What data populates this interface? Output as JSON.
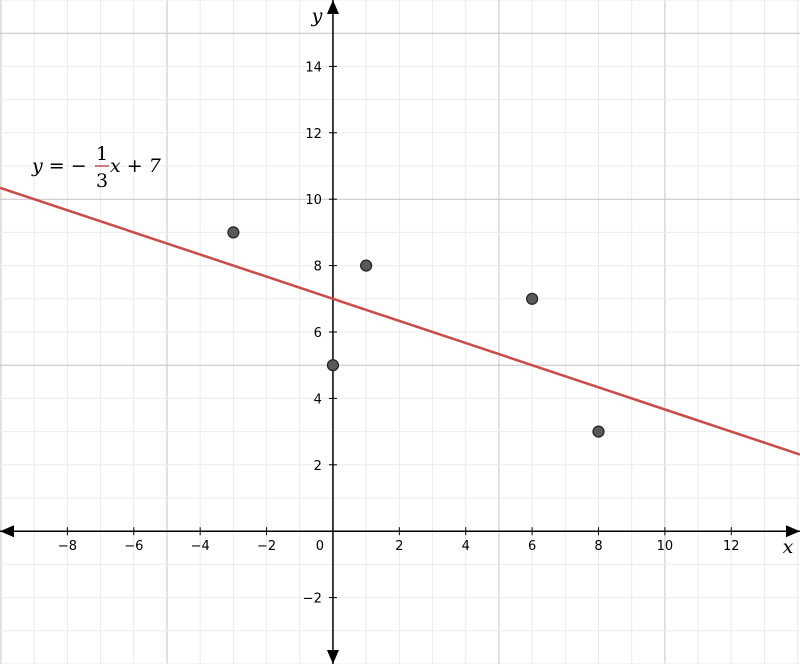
{
  "chart_data": {
    "type": "scatter",
    "x": [
      -3,
      1,
      0,
      6,
      8
    ],
    "values": [
      9,
      8,
      5,
      7,
      3
    ],
    "color": "#595959",
    "xlim": [
      -10.03,
      14.07
    ],
    "ylim": [
      -4.0,
      16.0
    ],
    "xticks": [
      {
        "value": -8,
        "label": "−8"
      },
      {
        "value": -6,
        "label": "−6"
      },
      {
        "value": -4,
        "label": "−4"
      },
      {
        "value": -2,
        "label": "−2"
      },
      0,
      2,
      4,
      6,
      8,
      10,
      12
    ],
    "yticks": [
      {
        "value": -2,
        "label": "−2"
      },
      2,
      4,
      6,
      8,
      10,
      12,
      14
    ],
    "x_label": "x",
    "y_label": "y",
    "grid": true,
    "minor_grid_step": 1,
    "major_grid_step": 5,
    "line": {
      "slope": -0.3333333333333333,
      "intercept": 7,
      "color": "#cc4a4a",
      "label": {
        "lhs": "y = −",
        "numerator": "1",
        "denominator": "3",
        "rhs": "x + 7",
        "color": "#b22222"
      }
    }
  }
}
